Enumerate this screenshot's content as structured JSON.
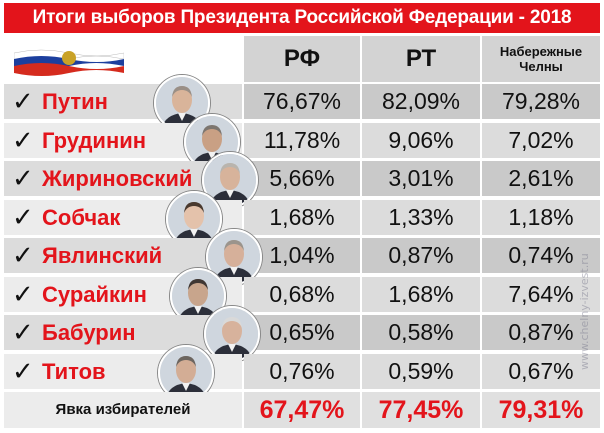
{
  "title": "Итоги выборов Президента Российской Федерации - 2018",
  "columns": [
    "РФ",
    "РТ",
    "Набережные Челны"
  ],
  "check_symbol": "✓",
  "candidates": [
    {
      "name": "Путин",
      "values": [
        "76,67%",
        "82,09%",
        "79,28%"
      ]
    },
    {
      "name": "Грудинин",
      "values": [
        "11,78%",
        "9,06%",
        "7,02%"
      ]
    },
    {
      "name": "Жириновский",
      "values": [
        "5,66%",
        "3,01%",
        "2,61%"
      ]
    },
    {
      "name": "Собчак",
      "values": [
        "1,68%",
        "1,33%",
        "1,18%"
      ]
    },
    {
      "name": "Явлинский",
      "values": [
        "1,04%",
        "0,87%",
        "0,74%"
      ]
    },
    {
      "name": "Сурайкин",
      "values": [
        "0,68%",
        "1,68%",
        "7,64%"
      ]
    },
    {
      "name": "Бабурин",
      "values": [
        "0,65%",
        "0,58%",
        "0,87%"
      ]
    },
    {
      "name": "Титов",
      "values": [
        "0,76%",
        "0,59%",
        "0,67%"
      ]
    }
  ],
  "turnout": {
    "label": "Явка избирателей",
    "values": [
      "67,47%",
      "77,45%",
      "79,31%"
    ]
  },
  "watermark": "www.chelny-izvest.ru",
  "colors": {
    "accent": "#e3141b",
    "row_dark": "#c9c9c9",
    "row_light": "#dcdcdc"
  }
}
